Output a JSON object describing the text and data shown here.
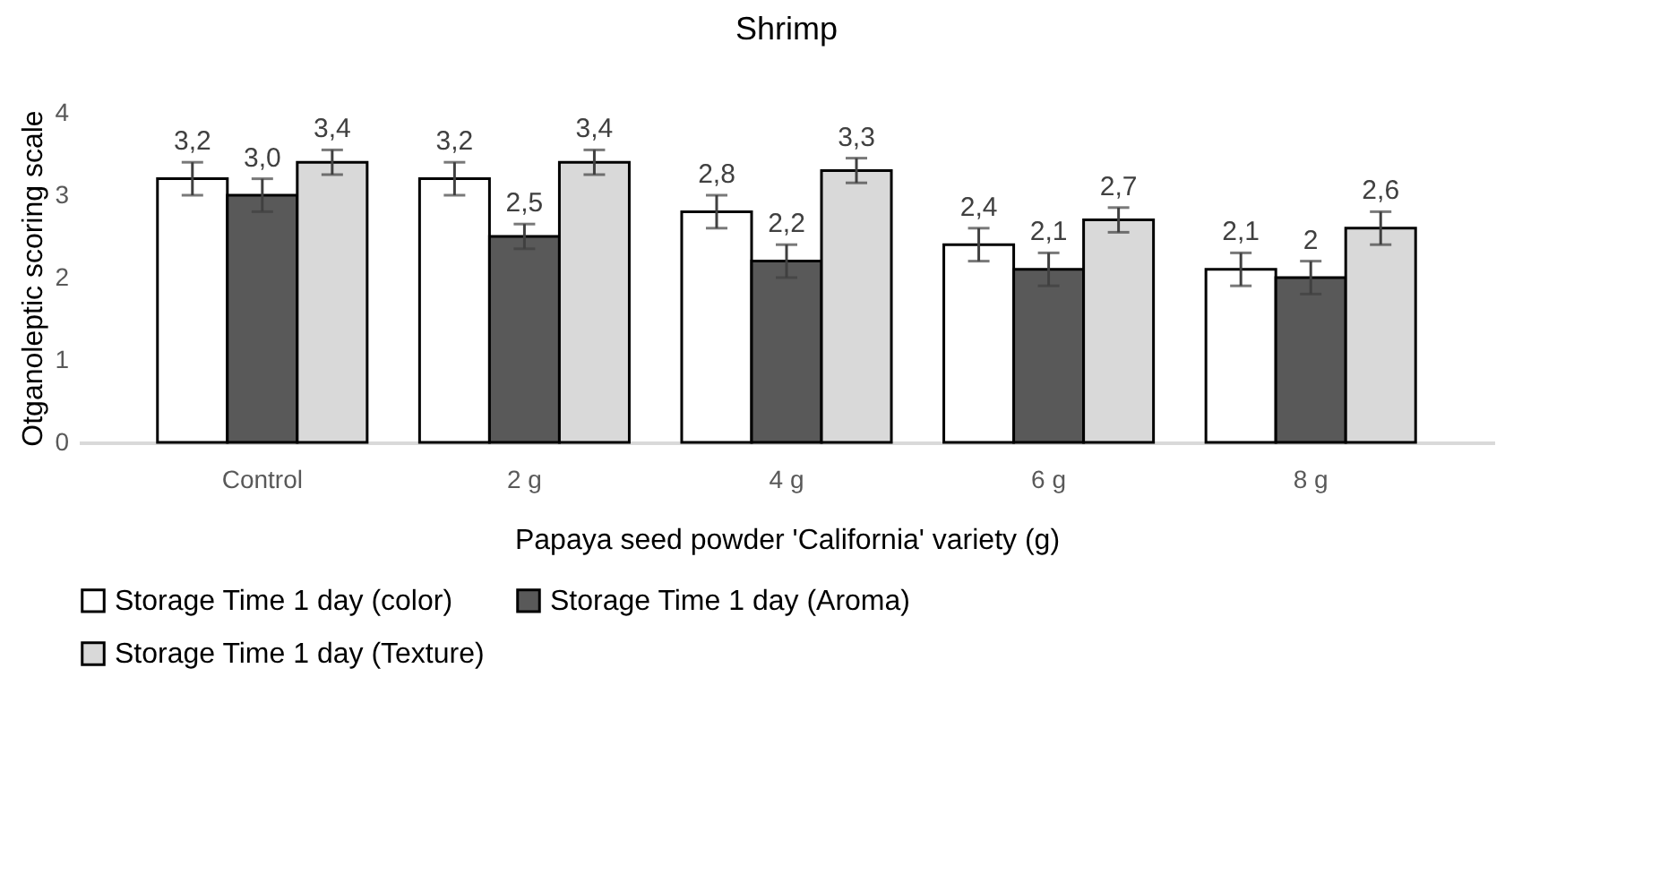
{
  "chart_data": {
    "type": "bar",
    "title": "Shrimp",
    "xlabel": "Papaya seed powder 'California' variety (g)",
    "ylabel": "Otganoleptic scoring scale",
    "categories": [
      "Control",
      "2 g",
      "4 g",
      "6 g",
      "8 g"
    ],
    "series": [
      {
        "name": "Storage Time 1 day (color)",
        "color": "#ffffff",
        "values": [
          3.2,
          3.2,
          2.8,
          2.4,
          2.1
        ],
        "errors": [
          0.2,
          0.2,
          0.2,
          0.2,
          0.2
        ],
        "value_labels": [
          "3,2",
          "3,2",
          "2,8",
          "2,4",
          "2,1"
        ]
      },
      {
        "name": "Storage Time 1 day (Aroma)",
        "color": "#595959",
        "values": [
          3.0,
          2.5,
          2.2,
          2.1,
          2.0
        ],
        "errors": [
          0.2,
          0.15,
          0.2,
          0.2,
          0.2
        ],
        "value_labels": [
          "3,0",
          "2,5",
          "2,2",
          "2,1",
          "2"
        ]
      },
      {
        "name": "Storage Time 1 day (Texture)",
        "color": "#d9d9d9",
        "values": [
          3.4,
          3.4,
          3.3,
          2.7,
          2.6
        ],
        "errors": [
          0.15,
          0.15,
          0.15,
          0.15,
          0.2
        ],
        "value_labels": [
          "3,4",
          "3,4",
          "3,3",
          "2,7",
          "2,6"
        ]
      }
    ],
    "ylim": [
      0,
      4
    ],
    "yticks": [
      0,
      1,
      2,
      3,
      4
    ],
    "grid": false,
    "legend": "bottom"
  }
}
